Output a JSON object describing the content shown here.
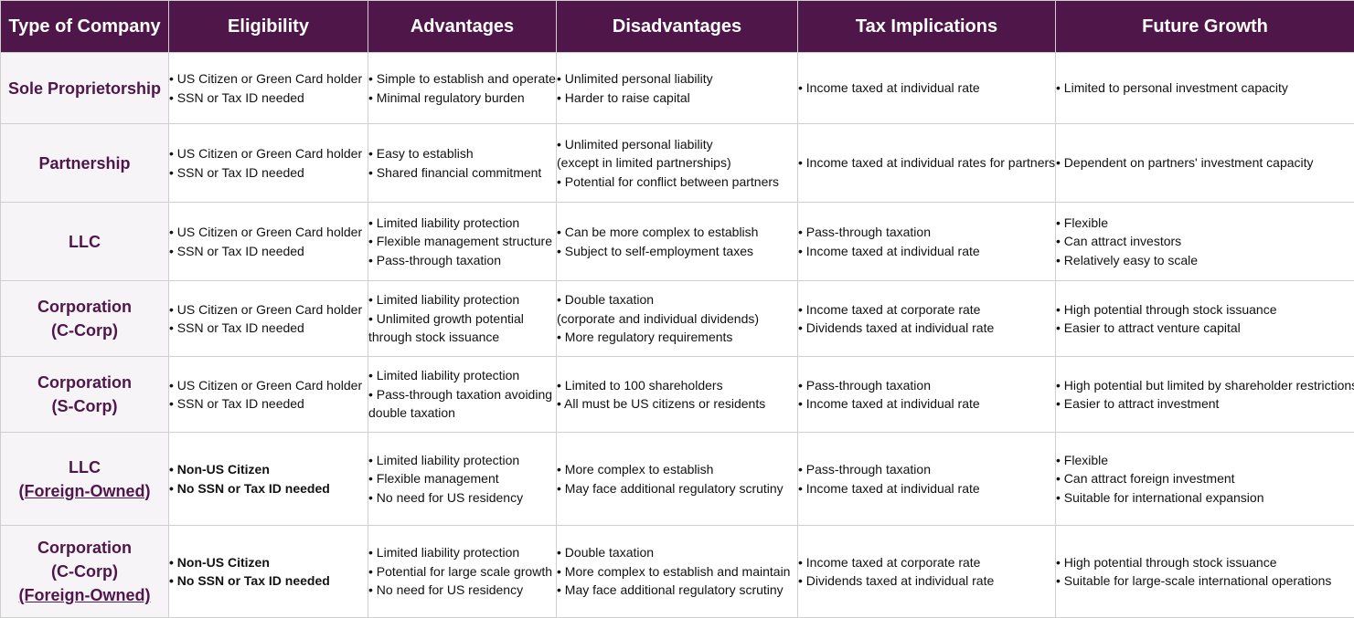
{
  "headers": [
    "Type of Company",
    "Eligibility",
    "Advantages",
    "Disadvantages",
    "Tax Implications",
    "Future Growth"
  ],
  "rows": [
    {
      "type": [
        {
          "text": "Sole Proprietorship",
          "underline": false
        }
      ],
      "eligibility": [
        "• US Citizen or Green Card holder",
        "• SSN or Tax ID needed"
      ],
      "eligibility_bold": false,
      "advantages": [
        "• Simple to establish and operate",
        "• Minimal regulatory burden"
      ],
      "disadvantages": [
        "• Unlimited personal liability",
        "• Harder to raise capital"
      ],
      "tax": [
        "• Income taxed at individual rate"
      ],
      "growth": [
        "• Limited to personal investment capacity"
      ]
    },
    {
      "type": [
        {
          "text": "Partnership",
          "underline": false
        }
      ],
      "eligibility": [
        "• US Citizen or Green Card holder",
        "• SSN or Tax ID needed"
      ],
      "eligibility_bold": false,
      "advantages": [
        "• Easy to establish",
        "• Shared financial commitment"
      ],
      "disadvantages": [
        "• Unlimited personal liability",
        "(except in limited partnerships)",
        "• Potential for conflict between partners"
      ],
      "tax": [
        "• Income taxed at individual rates for partners"
      ],
      "growth": [
        "• Dependent on partners' investment capacity"
      ]
    },
    {
      "type": [
        {
          "text": "LLC",
          "underline": false
        }
      ],
      "eligibility": [
        "• US Citizen or Green Card holder",
        "• SSN or Tax ID needed"
      ],
      "eligibility_bold": false,
      "advantages": [
        "• Limited liability protection",
        "• Flexible management structure",
        "• Pass-through taxation"
      ],
      "disadvantages": [
        "• Can be more complex to establish",
        "• Subject to self-employment taxes"
      ],
      "tax": [
        "• Pass-through taxation",
        "• Income taxed at individual rate"
      ],
      "growth": [
        "• Flexible",
        "• Can attract investors",
        "• Relatively easy to scale"
      ]
    },
    {
      "type": [
        {
          "text": "Corporation",
          "underline": false
        },
        {
          "text": "(C-Corp)",
          "underline": false
        }
      ],
      "eligibility": [
        "• US Citizen or Green Card holder",
        "• SSN or Tax ID needed"
      ],
      "eligibility_bold": false,
      "advantages": [
        "• Limited liability protection",
        "• Unlimited growth potential",
        "through stock issuance"
      ],
      "disadvantages": [
        "• Double taxation",
        "(corporate and individual dividends)",
        "• More regulatory requirements"
      ],
      "tax": [
        "• Income taxed at corporate rate",
        "• Dividends taxed at individual rate"
      ],
      "growth": [
        "• High potential through stock issuance",
        "• Easier to attract venture capital"
      ]
    },
    {
      "type": [
        {
          "text": "Corporation",
          "underline": false
        },
        {
          "text": "(S-Corp)",
          "underline": false
        }
      ],
      "eligibility": [
        "• US Citizen or Green Card holder",
        "• SSN or Tax ID needed"
      ],
      "eligibility_bold": false,
      "advantages": [
        "• Limited liability protection",
        "• Pass-through taxation avoiding",
        "double taxation"
      ],
      "disadvantages": [
        "• Limited to 100 shareholders",
        "• All must be US citizens or residents"
      ],
      "tax": [
        "• Pass-through taxation",
        "• Income taxed at individual rate"
      ],
      "growth": [
        "• High potential but limited by shareholder restrictions",
        "• Easier to attract investment"
      ]
    },
    {
      "type": [
        {
          "text": "LLC",
          "underline": false
        },
        {
          "text": "(Foreign-Owned)",
          "underline": true
        }
      ],
      "eligibility": [
        "• Non-US Citizen",
        "• No SSN or Tax ID needed"
      ],
      "eligibility_bold": true,
      "advantages": [
        "• Limited liability protection",
        "• Flexible management",
        "• No need for US residency"
      ],
      "disadvantages": [
        "• More complex to establish",
        "• May face additional regulatory scrutiny"
      ],
      "tax": [
        "• Pass-through taxation",
        "• Income taxed at individual rate"
      ],
      "growth": [
        "• Flexible",
        "• Can attract foreign investment",
        "• Suitable for international expansion"
      ]
    },
    {
      "type": [
        {
          "text": "Corporation",
          "underline": false
        },
        {
          "text": "(C-Corp)",
          "underline": false
        },
        {
          "text": "(Foreign-Owned)",
          "underline": true
        }
      ],
      "eligibility": [
        "• Non-US Citizen",
        "• No SSN or Tax ID needed"
      ],
      "eligibility_bold": true,
      "advantages": [
        "• Limited liability protection",
        "• Potential for large scale growth",
        "• No need for US residency"
      ],
      "disadvantages": [
        "• Double taxation",
        "• More complex to establish and maintain",
        "• May face additional regulatory scrutiny"
      ],
      "tax": [
        "• Income taxed at corporate rate",
        "• Dividends taxed at individual rate"
      ],
      "growth": [
        "• High potential through stock issuance",
        "• Suitable for large-scale international operations"
      ]
    }
  ]
}
